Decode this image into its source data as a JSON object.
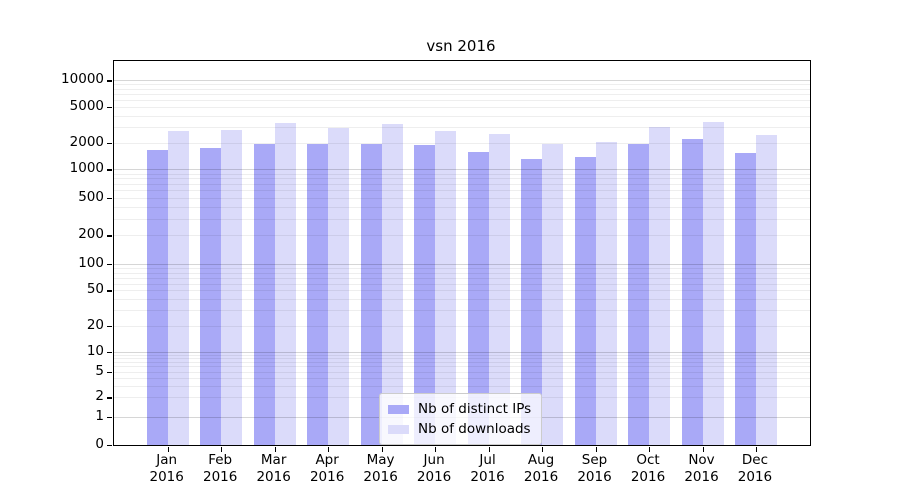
{
  "title": "vsn 2016",
  "legend": {
    "items": [
      {
        "label": "Nb of distinct IPs",
        "color": "#a9a9f7"
      },
      {
        "label": "Nb of downloads",
        "color": "#dbdbfa"
      }
    ]
  },
  "chart_data": {
    "type": "bar",
    "title": "vsn 2016",
    "yscale": "log (with 0 baseline)",
    "grid": true,
    "legend_position": "bottom-center",
    "year": "2016",
    "months": [
      "Jan",
      "Feb",
      "Mar",
      "Apr",
      "May",
      "Jun",
      "Jul",
      "Aug",
      "Sep",
      "Oct",
      "Nov",
      "Dec"
    ],
    "categories": [
      "Jan 2016",
      "Feb 2016",
      "Mar 2016",
      "Apr 2016",
      "May 2016",
      "Jun 2016",
      "Jul 2016",
      "Aug 2016",
      "Sep 2016",
      "Oct 2016",
      "Nov 2016",
      "Dec 2016"
    ],
    "yticks": [
      0,
      1,
      2,
      5,
      10,
      20,
      50,
      100,
      200,
      500,
      1000,
      2000,
      5000,
      10000
    ],
    "ylim": [
      0,
      17000
    ],
    "series": [
      {
        "name": "Nb of distinct IPs",
        "color": "#a9a9f7",
        "values": [
          1660,
          1750,
          1940,
          1925,
          1940,
          1860,
          1580,
          1300,
          1375,
          1940,
          2210,
          1515
        ]
      },
      {
        "name": "Nb of downloads",
        "color": "#dbdbfa",
        "values": [
          2690,
          2740,
          3340,
          2900,
          3260,
          2690,
          2510,
          1910,
          2030,
          3010,
          3430,
          2430
        ]
      }
    ]
  }
}
